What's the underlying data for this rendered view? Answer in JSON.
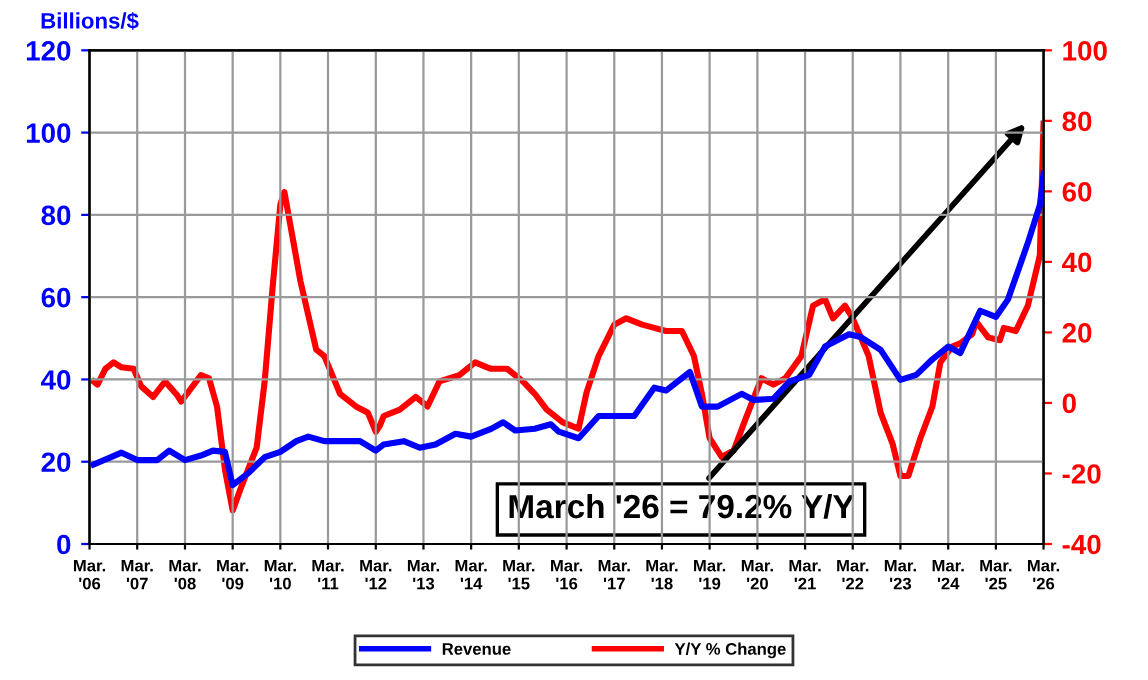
{
  "chart_data": {
    "type": "line",
    "ylabel": "Billions/$",
    "xlim": [
      "2006-03",
      "2026-03"
    ],
    "xticks": [
      {
        "value": "2006-03",
        "label": "Mar.\n'06"
      },
      {
        "value": "2007-03",
        "label": "Mar.\n'07"
      },
      {
        "value": "2008-03",
        "label": "Mar.\n'08"
      },
      {
        "value": "2009-03",
        "label": "Mar.\n'09"
      },
      {
        "value": "2010-03",
        "label": "Mar.\n'10"
      },
      {
        "value": "2011-03",
        "label": "Mar.\n'11"
      },
      {
        "value": "2012-03",
        "label": "Mar.\n'12"
      },
      {
        "value": "2013-03",
        "label": "Mar.\n'13"
      },
      {
        "value": "2014-03",
        "label": "Mar.\n'14"
      },
      {
        "value": "2015-03",
        "label": "Mar.\n'15"
      },
      {
        "value": "2016-03",
        "label": "Mar.\n'16"
      },
      {
        "value": "2017-03",
        "label": "Mar.\n'17"
      },
      {
        "value": "2018-03",
        "label": "Mar.\n'18"
      },
      {
        "value": "2019-03",
        "label": "Mar.\n'19"
      },
      {
        "value": "2020-03",
        "label": "Mar.\n'20"
      },
      {
        "value": "2021-03",
        "label": "Mar.\n'21"
      },
      {
        "value": "2022-03",
        "label": "Mar.\n'22"
      },
      {
        "value": "2023-03",
        "label": "Mar.\n'23"
      },
      {
        "value": "2024-03",
        "label": "Mar.\n'24"
      },
      {
        "value": "2025-03",
        "label": "Mar.\n'25"
      },
      {
        "value": "2026-03",
        "label": "Mar.\n'26"
      }
    ],
    "ylim": [
      0,
      120
    ],
    "yticks": [
      0,
      20,
      40,
      60,
      80,
      100,
      120
    ],
    "y2lim": [
      -40,
      100
    ],
    "y2ticks": [
      -40,
      -20,
      0,
      20,
      40,
      60,
      80,
      100
    ],
    "grid": true,
    "legend": "bottom",
    "marker": "none",
    "line_style": "solid",
    "annotations": [
      "March '26 = 79.2% Y/Y"
    ],
    "series": [
      {
        "name": "Revenue",
        "color": "#0000ff",
        "x": [
          "2006-04",
          "2006-11",
          "2007-03",
          "2007-08",
          "2007-11",
          "2008-03",
          "2008-07",
          "2008-10",
          "2009-01",
          "2009-03",
          "2009-07",
          "2009-11",
          "2010-03",
          "2010-07",
          "2010-10",
          "2011-02",
          "2011-11",
          "2012-03",
          "2012-05",
          "2012-10",
          "2013-02",
          "2013-06",
          "2013-11",
          "2014-03",
          "2014-08",
          "2014-11",
          "2015-02",
          "2015-07",
          "2015-11",
          "2016-01",
          "2016-06",
          "2016-11",
          "2017-08",
          "2018-01",
          "2018-04",
          "2018-10",
          "2019-01",
          "2019-05",
          "2019-11",
          "2020-02",
          "2020-07",
          "2020-11",
          "2021-04",
          "2021-08",
          "2022-02",
          "2022-05",
          "2022-10",
          "2023-03",
          "2023-07",
          "2023-11",
          "2024-03",
          "2024-06",
          "2024-11",
          "2025-03",
          "2025-06",
          "2025-11",
          "2026-02",
          "2026-03"
        ],
        "values": [
          19.3,
          22.2,
          20.4,
          20.4,
          22.7,
          20.4,
          21.5,
          22.7,
          22.4,
          14.3,
          17.3,
          21.1,
          22.4,
          25.0,
          26.1,
          25.0,
          25.0,
          22.7,
          24.2,
          25.0,
          23.4,
          24.2,
          26.8,
          26.1,
          28.0,
          29.6,
          27.6,
          28.0,
          29.1,
          27.3,
          25.7,
          31.1,
          31.1,
          38.0,
          37.3,
          41.8,
          33.4,
          33.4,
          36.5,
          35.0,
          35.3,
          39.5,
          41.1,
          48.0,
          51.0,
          50.3,
          47.2,
          39.9,
          41.1,
          44.9,
          48.0,
          46.4,
          56.7,
          55.2,
          59.4,
          73.2,
          82.4,
          90
        ]
      },
      {
        "name": "Y/Y % Change",
        "color": "#ff0000",
        "axis": "y2",
        "x": [
          "2006-04",
          "2006-05",
          "2006-07",
          "2006-09",
          "2006-11",
          "2007-02",
          "2007-04",
          "2007-07",
          "2007-10",
          "2008-01",
          "2008-02",
          "2008-07",
          "2008-09",
          "2008-11",
          "2009-01",
          "2009-03",
          "2009-05",
          "2009-09",
          "2009-11",
          "2010-01",
          "2010-03",
          "2010-04",
          "2010-06",
          "2010-08",
          "2010-12",
          "2011-02",
          "2011-06",
          "2011-10",
          "2012-01",
          "2012-03",
          "2012-04",
          "2012-05",
          "2012-09",
          "2013-01",
          "2013-02",
          "2013-04",
          "2013-07",
          "2013-12",
          "2014-04",
          "2014-07",
          "2014-08",
          "2014-12",
          "2015-04",
          "2015-07",
          "2015-10",
          "2016-02",
          "2016-06",
          "2016-08",
          "2016-11",
          "2017-03",
          "2017-06",
          "2017-10",
          "2018-01",
          "2018-04",
          "2018-08",
          "2018-11",
          "2019-01",
          "2019-03",
          "2019-06",
          "2019-09",
          "2019-12",
          "2020-04",
          "2020-07",
          "2020-10",
          "2021-02",
          "2021-05",
          "2021-08",
          "2021-10",
          "2022-01",
          "2022-03",
          "2022-07",
          "2022-10",
          "2023-01",
          "2023-03",
          "2023-05",
          "2023-08",
          "2023-11",
          "2024-01",
          "2024-04",
          "2024-06",
          "2024-09",
          "2024-10",
          "2025-01",
          "2025-04",
          "2025-05",
          "2025-08",
          "2025-11",
          "2026-02",
          "2026-03"
        ],
        "values": [
          6.1,
          5.2,
          9.7,
          11.5,
          10.1,
          9.7,
          4.7,
          1.7,
          6.1,
          2.2,
          0.4,
          7.9,
          7.0,
          -1.0,
          -18.9,
          -30.5,
          -24.3,
          -12.6,
          6.1,
          32.9,
          56.2,
          59.8,
          47.3,
          34.7,
          15.1,
          13.3,
          2.6,
          -1.0,
          -2.8,
          -8.2,
          -6.4,
          -3.7,
          -1.9,
          1.7,
          0.8,
          -1.0,
          6.1,
          7.9,
          11.5,
          10.1,
          9.7,
          9.7,
          6.1,
          2.6,
          -1.9,
          -5.5,
          -7.3,
          3.0,
          13.3,
          22.2,
          24.0,
          22.2,
          21.3,
          20.4,
          20.4,
          13.3,
          2.6,
          -10.0,
          -15.3,
          -13.5,
          -4.6,
          7.0,
          5.2,
          7.0,
          13.3,
          27.6,
          29.4,
          24.0,
          27.6,
          24.0,
          13.3,
          -2.8,
          -11.7,
          -20.7,
          -20.7,
          -10.0,
          -1.0,
          11.5,
          16.0,
          16.9,
          19.5,
          23.1,
          18.6,
          17.8,
          21.3,
          20.4,
          27.6,
          41.9,
          79.2
        ]
      }
    ]
  }
}
